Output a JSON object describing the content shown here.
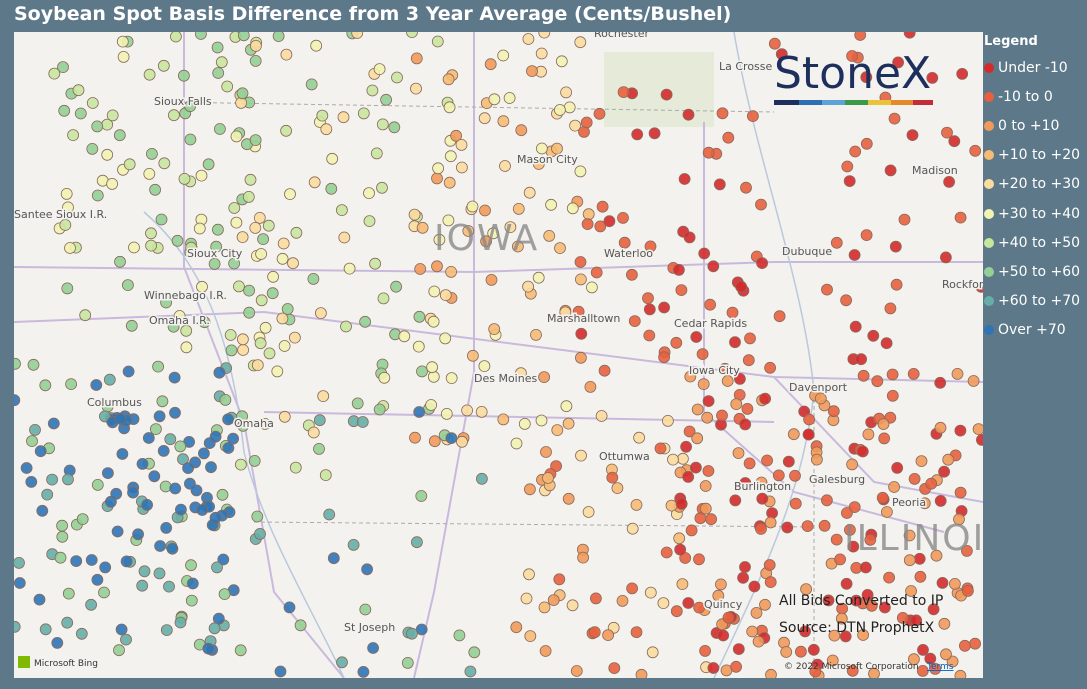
{
  "header": {
    "title": "Soybean Spot Basis Difference from 3 Year Average (Cents/Bushel)"
  },
  "legend": {
    "title": "Legend",
    "items": [
      {
        "label": "Under -10",
        "color": "#d42a2c"
      },
      {
        "label": "-10 to 0",
        "color": "#e8603f"
      },
      {
        "label": "0 to +10",
        "color": "#f19a5b"
      },
      {
        "label": "+10 to +20",
        "color": "#f6bb74"
      },
      {
        "label": "+20 to +30",
        "color": "#fbdc9e"
      },
      {
        "label": "+30 to +40",
        "color": "#f1f3b1"
      },
      {
        "label": "+40 to +50",
        "color": "#c8e59e"
      },
      {
        "label": "+50 to +60",
        "color": "#94cf95"
      },
      {
        "label": "+60 to +70",
        "color": "#67aea7"
      },
      {
        "label": "Over +70",
        "color": "#2f74b5"
      }
    ]
  },
  "map": {
    "places": [
      "Rochester",
      "La Crosse",
      "Sioux Falls",
      "Mason City",
      "Waterloo",
      "Dubuque",
      "Madison",
      "Rockford",
      "Sioux City",
      "Winnebago I.R.",
      "Omaha I.R.",
      "Marshalltown",
      "Cedar Rapids",
      "Iowa City",
      "Davenport",
      "Des Moines",
      "Columbus",
      "Omaha",
      "Ottumwa",
      "Burlington",
      "Galesburg",
      "Peoria",
      "Quincy",
      "St Joseph",
      "Santee Sioux I.R."
    ],
    "states": [
      "IOWA",
      "ILLINOIS"
    ],
    "logo": "StoneX",
    "notes": [
      "All Bids Converted to IP",
      "Source: DTN ProphetX"
    ],
    "attribution": {
      "provider": "Microsoft Bing",
      "copyright": "© 2022 Microsoft Corporation",
      "terms": "Terms"
    }
  }
}
